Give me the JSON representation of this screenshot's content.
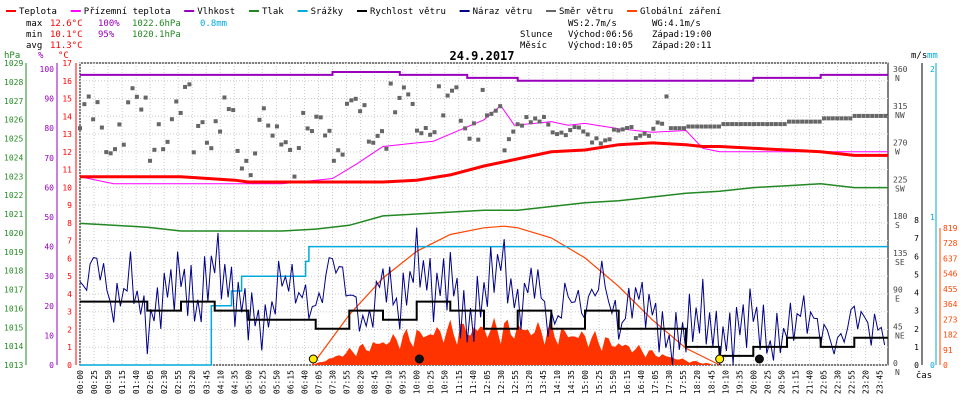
{
  "chart_data": {
    "type": "line",
    "title": "24.9.2017",
    "xlabel": "čas",
    "legend": [
      {
        "label": "Teplota",
        "color": "#ff0000"
      },
      {
        "label": "Přízemní teplota",
        "color": "#ff00ff"
      },
      {
        "label": "Vlhkost",
        "color": "#9900bb"
      },
      {
        "label": "Tlak",
        "color": "#228822"
      },
      {
        "label": "Srážky",
        "color": "#00aadd"
      },
      {
        "label": "Rychlost větru",
        "color": "#000000"
      },
      {
        "label": "Náraz větru",
        "color": "#000088"
      },
      {
        "label": "Směr větru",
        "color": "#666666"
      },
      {
        "label": "Globální záření",
        "color": "#ff4400"
      }
    ],
    "stats": {
      "max": {
        "label": "max",
        "temp": "12.6°C",
        "hum": "100%",
        "press": "1022.6hPa",
        "rain": "0.8mm"
      },
      "min": {
        "label": "min",
        "temp": "10.1°C",
        "hum": "95%",
        "press": "1020.1hPa"
      },
      "avg": {
        "label": "avg",
        "temp": "11.3°C"
      }
    },
    "wind_info": {
      "ws": "WS:2.7m/s",
      "wg": "WG:4.1m/s"
    },
    "sun": {
      "label": "Slunce",
      "rise": "Východ:06:56",
      "set": "Západ:19:00"
    },
    "moon": {
      "label": "Měsíc",
      "rise": "Východ:10:05",
      "set": "Západ:20:11"
    },
    "axes": {
      "hpa": {
        "unit": "hPa",
        "ticks": [
          "1013",
          "1014",
          "1015",
          "1016",
          "1017",
          "1018",
          "1019",
          "1020",
          "1021",
          "1022",
          "1023",
          "1024",
          "1025",
          "1026",
          "1027",
          "1028",
          "1029"
        ]
      },
      "pct": {
        "unit": "%",
        "ticks": [
          "0",
          "10",
          "20",
          "30",
          "40",
          "50",
          "60",
          "70",
          "80",
          "90",
          "100"
        ]
      },
      "temp": {
        "unit": "°C",
        "ticks": [
          "0",
          "1",
          "2",
          "3",
          "4",
          "5",
          "6",
          "7",
          "8",
          "9",
          "10",
          "11",
          "12",
          "13",
          "14",
          "15",
          "16",
          "17"
        ]
      },
      "ms": {
        "unit": "m/s",
        "ticks": [
          "0",
          "1",
          "2",
          "3",
          "4",
          "5",
          "6",
          "7",
          "8"
        ]
      },
      "dir": {
        "ticks": [
          "0",
          "45",
          "90",
          "135",
          "180",
          "225",
          "270",
          "315",
          "360"
        ],
        "compass": [
          "N",
          "NE",
          "E",
          "SE",
          "S",
          "SW",
          "W",
          "NW",
          "N"
        ]
      },
      "mm": {
        "unit": "mm",
        "ticks": [
          "0",
          "1",
          "2"
        ]
      },
      "rad": {
        "ticks": [
          "0",
          "91",
          "182",
          "273",
          "364",
          "455",
          "546",
          "637",
          "728",
          "819"
        ]
      }
    },
    "time_labels": [
      "00:00",
      "00:25",
      "00:50",
      "01:15",
      "01:40",
      "02:05",
      "02:30",
      "02:55",
      "03:20",
      "03:45",
      "04:10",
      "04:35",
      "05:00",
      "05:25",
      "05:50",
      "06:15",
      "06:40",
      "07:05",
      "07:30",
      "07:55",
      "08:20",
      "08:45",
      "09:10",
      "09:35",
      "10:00",
      "10:25",
      "10:50",
      "11:15",
      "11:40",
      "12:05",
      "12:30",
      "12:55",
      "13:20",
      "13:45",
      "14:10",
      "14:35",
      "15:00",
      "15:25",
      "15:50",
      "16:15",
      "16:40",
      "17:05",
      "17:30",
      "17:55",
      "18:20",
      "18:45",
      "19:10",
      "19:35",
      "20:00",
      "20:25",
      "20:50",
      "21:15",
      "21:40",
      "22:05",
      "22:30",
      "22:55",
      "23:20",
      "23:45"
    ],
    "series": {
      "teplota_c": {
        "t": [
          0,
          3,
          4.6,
          5,
          6,
          7,
          8,
          9,
          10,
          11,
          12,
          13,
          14,
          15,
          16,
          17,
          18,
          18.5,
          19,
          20,
          21,
          22,
          23,
          24
        ],
        "v": [
          10.6,
          10.6,
          10.4,
          10.3,
          10.3,
          10.3,
          10.3,
          10.3,
          10.4,
          10.7,
          11.2,
          11.6,
          12.0,
          12.1,
          12.4,
          12.5,
          12.4,
          12.3,
          12.3,
          12.2,
          12.1,
          12.0,
          11.8,
          11.8
        ]
      },
      "prizemni_teplota_c": {
        "t": [
          0,
          1.0,
          1.5,
          2,
          4,
          6,
          7.5,
          8.2,
          9,
          10,
          10.5,
          11,
          12,
          12.5,
          12.9,
          13.5,
          14,
          14.5,
          15,
          16,
          17,
          18,
          18.5,
          19,
          20,
          22,
          24
        ],
        "v": [
          10.6,
          10.2,
          10.2,
          10.2,
          10.2,
          10.2,
          10.5,
          11.3,
          12.3,
          12.5,
          12.6,
          13.0,
          13.8,
          14.6,
          13.5,
          13.6,
          13.7,
          13.5,
          13.6,
          13.3,
          13.1,
          13.2,
          12.2,
          12.0,
          12.0,
          12.0,
          12.0
        ]
      },
      "vlhkost_pct": {
        "t": [
          0,
          6.5,
          7.5,
          9,
          9.5,
          11,
          11.5,
          12,
          13,
          14,
          15,
          16,
          17,
          18,
          19,
          20,
          21,
          22,
          24
        ],
        "v": [
          98,
          98,
          99,
          99,
          98,
          98,
          97,
          97,
          96,
          96,
          96,
          96,
          96,
          96,
          96,
          97,
          97,
          98,
          98
        ]
      },
      "tlak_hpa": {
        "t": [
          0,
          1,
          2,
          3,
          4,
          5,
          6,
          7,
          8,
          9,
          10,
          11,
          12,
          13,
          14,
          15,
          16,
          17,
          18,
          19,
          20,
          21,
          22,
          23,
          24
        ],
        "v": [
          1020.5,
          1020.4,
          1020.3,
          1020.1,
          1020.1,
          1020.1,
          1020.1,
          1020.2,
          1020.4,
          1020.9,
          1021.0,
          1021.1,
          1021.2,
          1021.2,
          1021.4,
          1021.6,
          1021.7,
          1021.9,
          1022.1,
          1022.2,
          1022.4,
          1022.5,
          1022.6,
          1022.4,
          1022.4
        ]
      },
      "srazky_mm": {
        "t": [
          0,
          3.4,
          3.9,
          4.0,
          4.3,
          4.5,
          4.8,
          5.0,
          6.5,
          6.7,
          6.8,
          24
        ],
        "v": [
          0,
          0,
          0.4,
          0.4,
          0.4,
          0.5,
          0.6,
          0.6,
          0.6,
          0.7,
          0.8,
          0.8
        ]
      },
      "globalni_zareni": {
        "t": [
          6.9,
          8,
          9,
          10,
          11,
          12,
          12.6,
          13,
          14,
          15,
          16,
          17,
          18,
          19
        ],
        "v": [
          0,
          300,
          520,
          680,
          780,
          820,
          830,
          820,
          760,
          640,
          470,
          270,
          100,
          0
        ]
      },
      "rychlost_vetru_ms": {
        "t": [
          0,
          1,
          2,
          3,
          4,
          5,
          6,
          7,
          8,
          9,
          10,
          11,
          12,
          13,
          14,
          15,
          16,
          17,
          18,
          19,
          20,
          21,
          22,
          23,
          24
        ],
        "v": [
          3.5,
          3.5,
          3,
          3.5,
          3,
          2.5,
          2.5,
          2,
          3,
          2.5,
          3.5,
          3,
          2,
          3,
          2,
          3,
          2,
          2,
          1,
          0.5,
          1,
          1.5,
          1,
          1.5,
          1.5
        ]
      },
      "naraz_vetru_ms": {
        "t": [
          0,
          0.5,
          1,
          1.5,
          2,
          2.5,
          3,
          3.5,
          4,
          4.5,
          5,
          5.5,
          6,
          6.5,
          7,
          7.5,
          8,
          8.5,
          9,
          9.5,
          10,
          10.5,
          11,
          11.5,
          12,
          12.5,
          13,
          13.5,
          14,
          14.5,
          15,
          15.5,
          16,
          16.5,
          17,
          17.5,
          18,
          18.5,
          19,
          19.5,
          20,
          20.5,
          21,
          21.5,
          22,
          22.5,
          23,
          23.5,
          24
        ],
        "v": [
          4,
          6,
          3,
          5,
          2,
          4,
          5,
          3,
          6,
          4,
          3,
          2,
          5,
          4,
          3,
          6,
          4,
          2,
          5,
          3,
          6,
          4,
          5,
          2,
          4,
          6,
          3,
          5,
          2,
          4,
          3,
          5,
          2,
          4,
          3,
          1,
          2,
          3,
          1,
          2,
          3,
          1,
          2,
          3,
          2,
          1,
          3,
          2,
          2
        ]
      },
      "smer_vetru_deg": {
        "t": [
          0,
          1,
          2,
          3,
          4,
          5,
          6,
          7,
          8,
          9,
          10,
          11,
          12,
          13,
          14,
          15,
          16,
          17,
          18,
          19,
          20,
          21,
          22,
          23,
          24
        ],
        "v": [
          290,
          300,
          295,
          300,
          285,
          270,
          275,
          290,
          295,
          300,
          305,
          310,
          300,
          295,
          285,
          280,
          285,
          290,
          292,
          295,
          295,
          298,
          302,
          305,
          305
        ]
      }
    },
    "sun_markers": [
      {
        "time": 6.93,
        "color": "#ffee00"
      },
      {
        "time": 19.0,
        "color": "#ffee00"
      }
    ],
    "moon_markers": [
      {
        "time": 10.08,
        "color": "#111111"
      },
      {
        "time": 20.18,
        "color": "#111111"
      }
    ]
  }
}
